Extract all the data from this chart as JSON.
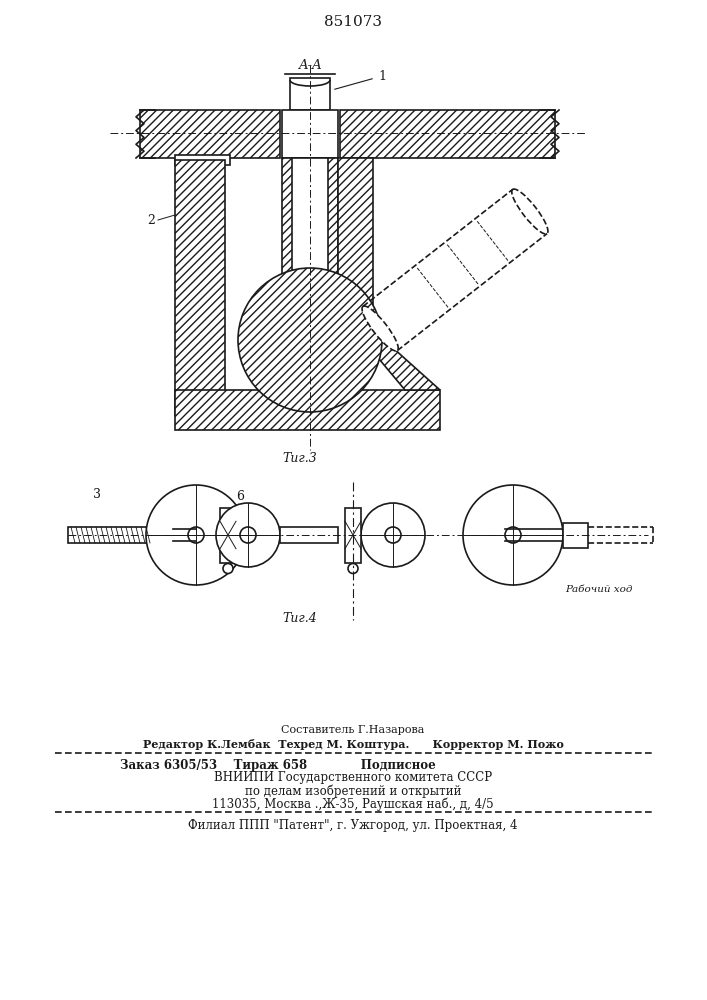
{
  "patent_number": "851073",
  "fig3_label": "Τиг.3",
  "fig4_label": "Τиг.4",
  "aa_label": "A-A",
  "label1": "1",
  "label2": "2",
  "label3": "3",
  "label6": "6",
  "label_rabochiy": "Рабочий ход",
  "footer_comp": "Составитель Г.Назарова",
  "footer_editor": "Редактор К.Лембак  Техред М. Коштура.      Корректор М. Пожо",
  "footer_order": "Заказ 6305/53    Тираж 658             Подписное",
  "footer_vniip": "ВНИИПИ Государственного комитета СССР",
  "footer_affairs": "по делам изобретений и открытий",
  "footer_addr": "113035, Москва .,Ж-35, Раушская наб., д, 4/5",
  "footer_filial": "Филиал ППП \"Патент\", г. Ужгород, ул. Проектная, 4",
  "bg_color": "#ffffff",
  "line_color": "#1a1a1a"
}
